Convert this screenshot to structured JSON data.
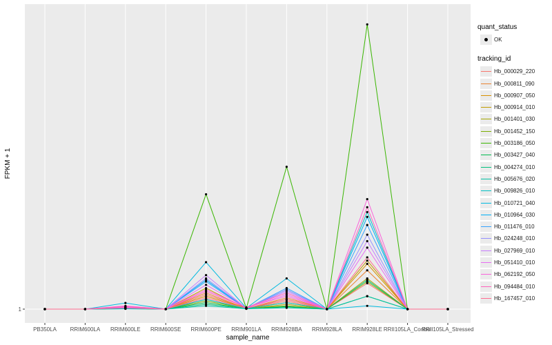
{
  "chart_data": {
    "type": "line",
    "xlabel": "sample_name",
    "ylabel": "FPKM + 1",
    "y_tick_labels": [
      "1"
    ],
    "ylim": [
      0,
      9
    ],
    "grid": true,
    "legend_placement": "right",
    "categories": [
      "PB350LA",
      "RRIM600LA",
      "RRIM600LE",
      "RRIM600SE",
      "RRIM600PE",
      "RRIM901LA",
      "RRIM928BA",
      "RRIM928LA",
      "RRIM928LE",
      "RRII105LA_Control",
      "RRII105LA_Stressed"
    ],
    "quant_status_title": "quant_status",
    "quant_status_entries": [
      "OK"
    ],
    "legend_title": "tracking_id",
    "series": [
      {
        "name": "Hb_000029_220",
        "color": "#F8766D",
        "values": [
          0,
          0,
          0.02,
          0,
          0.45,
          0.03,
          0.25,
          0,
          0.8,
          0,
          0
        ]
      },
      {
        "name": "Hb_000811_090",
        "color": "#EA8331",
        "values": [
          0,
          0,
          0.02,
          0,
          0.5,
          0.02,
          0.35,
          0,
          1.2,
          0,
          0
        ]
      },
      {
        "name": "Hb_000907_050",
        "color": "#D89000",
        "values": [
          0,
          0,
          0.02,
          0,
          0.4,
          0.03,
          0.2,
          0,
          1.4,
          0,
          0
        ]
      },
      {
        "name": "Hb_000914_010",
        "color": "#C09B00",
        "values": [
          0,
          0,
          0.03,
          0,
          0.65,
          0.02,
          0.3,
          0,
          1.5,
          0,
          0
        ]
      },
      {
        "name": "Hb_001401_030",
        "color": "#A3A500",
        "values": [
          0,
          0,
          0.02,
          0,
          0.3,
          0.01,
          0.15,
          0,
          0.95,
          0,
          0
        ]
      },
      {
        "name": "Hb_001452_150",
        "color": "#7CAE00",
        "values": [
          0,
          0,
          0.02,
          0,
          0.25,
          0.02,
          0.1,
          0,
          0.85,
          0,
          0
        ]
      },
      {
        "name": "Hb_003186_050",
        "color": "#39B600",
        "values": [
          0,
          0,
          0.03,
          0,
          3.55,
          0.03,
          4.4,
          0,
          8.8,
          0,
          0
        ]
      },
      {
        "name": "Hb_003427_040",
        "color": "#00BB4E",
        "values": [
          0,
          0,
          0.02,
          0,
          0.2,
          0.01,
          0.08,
          0,
          0.4,
          0,
          0
        ]
      },
      {
        "name": "Hb_004274_010",
        "color": "#00BF7D",
        "values": [
          0,
          0,
          0.01,
          0,
          0.15,
          0.02,
          0.05,
          0,
          0.9,
          0,
          0
        ]
      },
      {
        "name": "Hb_005676_020",
        "color": "#00C1A3",
        "values": [
          0,
          0,
          0.01,
          0,
          0.1,
          0.01,
          0.04,
          0,
          0.4,
          0,
          0
        ]
      },
      {
        "name": "Hb_009826_010",
        "color": "#00BFC4",
        "values": [
          0,
          0,
          0.02,
          0,
          0.3,
          0.02,
          0.2,
          0,
          3.0,
          0,
          0
        ]
      },
      {
        "name": "Hb_010721_040",
        "color": "#00BAE0",
        "values": [
          0,
          0,
          0.19,
          0,
          1.45,
          0.03,
          0.95,
          0,
          0.1,
          0,
          0
        ]
      },
      {
        "name": "Hb_010964_030",
        "color": "#00B0F6",
        "values": [
          0,
          0,
          0.05,
          0,
          0.9,
          0.02,
          0.6,
          0,
          2.85,
          0,
          0
        ]
      },
      {
        "name": "Hb_011476_010",
        "color": "#35A2FF",
        "values": [
          0,
          0,
          0.03,
          0,
          0.85,
          0.02,
          0.65,
          0,
          2.6,
          0,
          0
        ]
      },
      {
        "name": "Hb_024248_010",
        "color": "#9590FF",
        "values": [
          0,
          0,
          0.04,
          0,
          0.95,
          0.03,
          0.6,
          0,
          2.3,
          0,
          0
        ]
      },
      {
        "name": "Hb_027969_010",
        "color": "#C77CFF",
        "values": [
          0,
          0,
          0.05,
          0,
          1.05,
          0.02,
          0.55,
          0,
          2.1,
          0,
          0
        ]
      },
      {
        "name": "Hb_051410_010",
        "color": "#E76BF3",
        "values": [
          0,
          0,
          0.06,
          0,
          0.75,
          0.04,
          0.45,
          0,
          1.9,
          0,
          0
        ]
      },
      {
        "name": "Hb_062192_050",
        "color": "#FA62DB",
        "values": [
          0,
          0,
          0.1,
          0,
          0.6,
          0.05,
          0.4,
          0,
          3.4,
          0,
          0
        ]
      },
      {
        "name": "Hb_094484_010",
        "color": "#FF62BC",
        "values": [
          0,
          0,
          0.08,
          0,
          0.55,
          0.05,
          0.5,
          0,
          3.15,
          0,
          0
        ]
      },
      {
        "name": "Hb_167457_010",
        "color": "#FF6C91",
        "values": [
          0,
          0,
          0.04,
          0,
          0.35,
          0.03,
          0.3,
          0,
          1.6,
          0,
          0
        ]
      }
    ]
  }
}
